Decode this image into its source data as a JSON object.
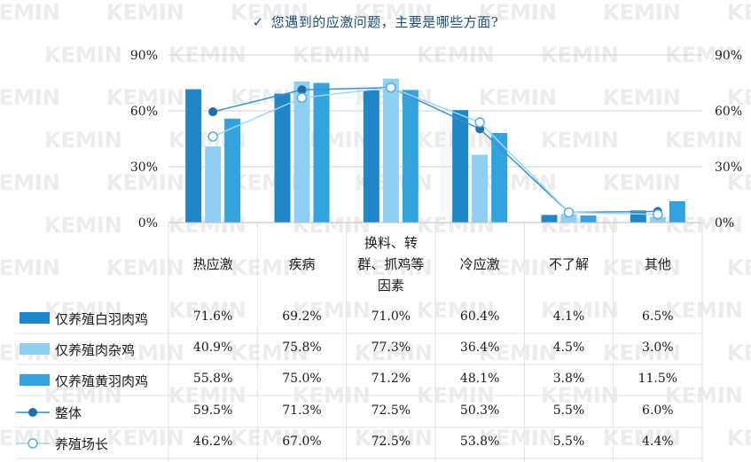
{
  "title": "您遇到的应激问题，主要是哪些方面?",
  "colors": {
    "white_broiler": "#1f86c8",
    "hybrid": "#8ecff2",
    "yellow_broiler": "#32a3de",
    "overall": "#1f6fa8",
    "farm_manager": "#8ecff2",
    "watermark": "#ececec",
    "grid": "#d0d0d0",
    "title": "#1f4e79"
  },
  "watermark_text": "KEMIN",
  "chart_data": {
    "type": "bar",
    "title": "您遇到的应激问题，主要是哪些方面?",
    "categories": [
      "热应激",
      "疾病",
      "换料、转群、抓鸡等因素",
      "冷应激",
      "不了解",
      "其他"
    ],
    "category_lines": [
      [
        "热应激"
      ],
      [
        "疾病"
      ],
      [
        "换料、转",
        "群、抓鸡等",
        "因素"
      ],
      [
        "冷应激"
      ],
      [
        "不了解"
      ],
      [
        "其他"
      ]
    ],
    "y_ticks": [
      "0%",
      "30%",
      "60%",
      "90%"
    ],
    "ylim": [
      0,
      90
    ],
    "y_unit": "%",
    "grid": "horizontal",
    "series": [
      {
        "name": "仅养殖白羽肉鸡",
        "kind": "bar",
        "values": [
          71.6,
          69.2,
          71.0,
          60.4,
          4.1,
          6.5
        ],
        "labels": [
          "71.6%",
          "69.2%",
          "71.0%",
          "60.4%",
          "4.1%",
          "6.5%"
        ]
      },
      {
        "name": "仅养殖肉杂鸡",
        "kind": "bar",
        "values": [
          40.9,
          75.8,
          77.3,
          36.4,
          4.5,
          3.0
        ],
        "labels": [
          "40.9%",
          "75.8%",
          "77.3%",
          "36.4%",
          "4.5%",
          "3.0%"
        ]
      },
      {
        "name": "仅养殖黄羽肉鸡",
        "kind": "bar",
        "values": [
          55.8,
          75.0,
          71.2,
          48.1,
          3.8,
          11.5
        ],
        "labels": [
          "55.8%",
          "75.0%",
          "71.2%",
          "48.1%",
          "3.8%",
          "11.5%"
        ]
      },
      {
        "name": "整体",
        "kind": "line-filled",
        "values": [
          59.5,
          71.3,
          72.5,
          50.3,
          5.5,
          6.0
        ],
        "labels": [
          "59.5%",
          "71.3%",
          "72.5%",
          "50.3%",
          "5.5%",
          "6.0%"
        ]
      },
      {
        "name": "养殖场长",
        "kind": "line-hollow",
        "values": [
          46.2,
          67.0,
          72.5,
          53.8,
          5.5,
          4.4
        ],
        "labels": [
          "46.2%",
          "67.0%",
          "72.5%",
          "53.8%",
          "5.5%",
          "4.4%"
        ]
      }
    ]
  }
}
